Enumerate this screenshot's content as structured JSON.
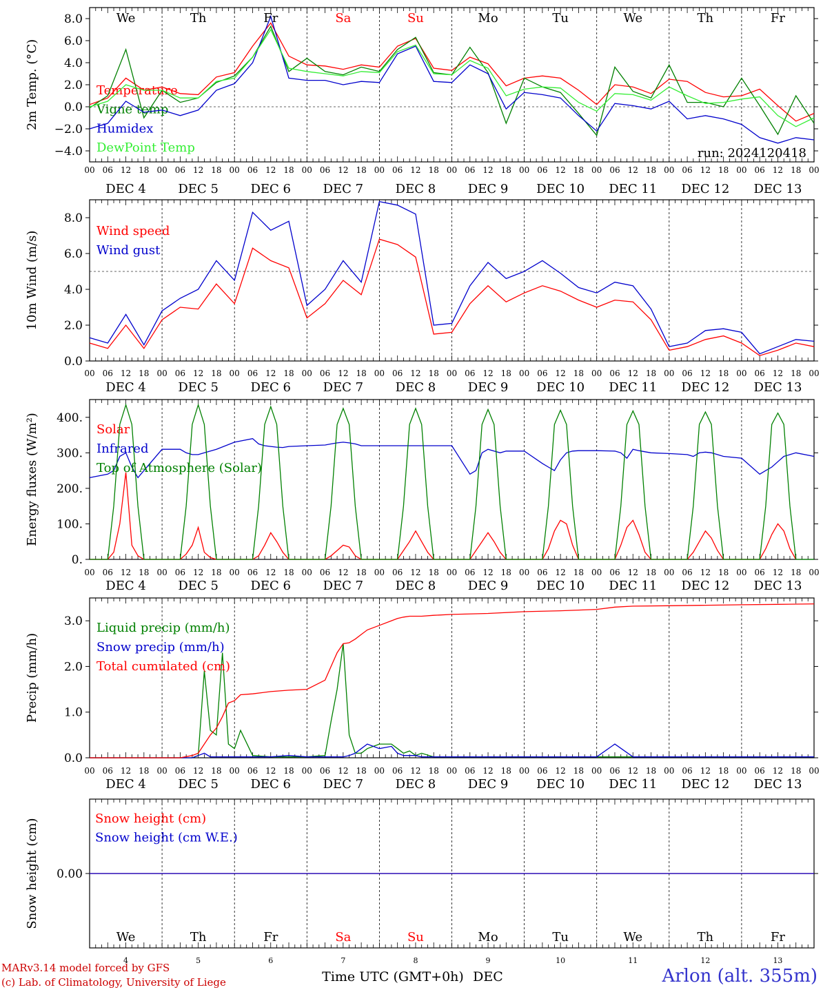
{
  "days": [
    {
      "wd": "We",
      "date": "DEC  4",
      "num": "4",
      "weekend": false
    },
    {
      "wd": "Th",
      "date": "DEC  5",
      "num": "5",
      "weekend": false
    },
    {
      "wd": "Fr",
      "date": "DEC  6",
      "num": "6",
      "weekend": false
    },
    {
      "wd": "Sa",
      "date": "DEC  7",
      "num": "7",
      "weekend": true
    },
    {
      "wd": "Su",
      "date": "DEC  8",
      "num": "8",
      "weekend": true
    },
    {
      "wd": "Mo",
      "date": "DEC  9",
      "num": "9",
      "weekend": false
    },
    {
      "wd": "Tu",
      "date": "DEC 10",
      "num": "10",
      "weekend": false
    },
    {
      "wd": "We",
      "date": "DEC 11",
      "num": "11",
      "weekend": false
    },
    {
      "wd": "Th",
      "date": "DEC 12",
      "num": "12",
      "weekend": false
    },
    {
      "wd": "Fr",
      "date": "DEC 13",
      "num": "13",
      "weekend": false
    }
  ],
  "hour_labels": [
    "00",
    "06",
    "12",
    "18"
  ],
  "end_hour_label": "00",
  "colors": {
    "red": "#ff0000",
    "green": "#008000",
    "blue": "#0000cc",
    "lightgreen": "#33ee33",
    "weekend": "#ff0000"
  },
  "chart_data": [
    {
      "type": "line",
      "ylabel": "2m Temp. (°C)",
      "ylim": [
        -5,
        9
      ],
      "yticks": [
        "8.0",
        "6.0",
        "4.0",
        "2.0",
        "0.0",
        "−2.0",
        "−4.0"
      ],
      "ytick_values": [
        8,
        6,
        4,
        2,
        0,
        -2,
        -4
      ],
      "ref_line": 0,
      "annotation": "run: 2024120418",
      "x_hours": [
        0,
        6,
        12,
        18,
        24,
        30,
        36,
        42,
        48,
        54,
        60,
        66,
        72,
        78,
        84,
        90,
        96,
        102,
        108,
        114,
        120,
        126,
        132,
        138,
        144,
        150,
        156,
        162,
        168,
        174,
        180,
        186,
        192,
        198,
        204,
        210,
        216,
        222,
        228,
        234,
        240
      ],
      "series": [
        {
          "name": "Temperature",
          "color": "red",
          "values": [
            0.2,
            0.8,
            2.6,
            1.5,
            1.8,
            1.2,
            1.1,
            2.7,
            3.1,
            5.5,
            7.6,
            4.6,
            3.8,
            3.7,
            3.4,
            3.8,
            3.6,
            5.5,
            6.2,
            3.5,
            3.3,
            4.5,
            3.9,
            1.9,
            2.6,
            2.8,
            2.6,
            1.5,
            0.2,
            2.0,
            1.8,
            1.2,
            2.5,
            2.3,
            1.3,
            0.9,
            1.0,
            1.6,
            0.1,
            -1.3,
            -0.6
          ]
        },
        {
          "name": "Vigne temp",
          "color": "green",
          "values": [
            -0.1,
            1.0,
            5.2,
            -1.0,
            1.5,
            0.4,
            0.8,
            2.2,
            2.8,
            4.5,
            7.3,
            3.2,
            4.4,
            3.2,
            2.9,
            3.6,
            3.2,
            5.2,
            6.3,
            3.1,
            2.9,
            5.4,
            3.1,
            -1.5,
            2.6,
            1.8,
            1.3,
            -0.6,
            -2.6,
            3.6,
            1.4,
            0.8,
            3.8,
            0.4,
            0.4,
            0.0,
            2.6,
            0.1,
            -2.5,
            1.0,
            -1.5
          ]
        },
        {
          "name": "Humidex",
          "color": "blue",
          "values": [
            -2.0,
            -1.5,
            0.5,
            -0.5,
            -0.3,
            -0.8,
            -0.3,
            1.5,
            2.1,
            4.0,
            8.2,
            2.6,
            2.4,
            2.4,
            2.0,
            2.3,
            2.2,
            4.8,
            5.5,
            2.3,
            2.2,
            3.8,
            3.0,
            -0.2,
            1.3,
            1.1,
            0.8,
            -0.8,
            -2.2,
            0.3,
            0.1,
            -0.2,
            0.5,
            -1.1,
            -0.8,
            -1.1,
            -1.6,
            -2.8,
            -3.3,
            -2.8,
            -3.0
          ]
        },
        {
          "name": "DewPoint Temp",
          "color": "lightgreen",
          "values": [
            0.0,
            0.5,
            2.0,
            1.5,
            1.5,
            0.8,
            0.8,
            2.3,
            2.6,
            4.5,
            7.0,
            3.5,
            3.2,
            3.0,
            2.8,
            3.2,
            3.1,
            5.0,
            5.6,
            3.0,
            2.9,
            4.2,
            3.5,
            1.0,
            1.6,
            1.8,
            1.7,
            0.4,
            -0.4,
            1.2,
            1.1,
            0.6,
            1.8,
            1.0,
            0.3,
            0.4,
            0.7,
            0.9,
            -0.8,
            -1.8,
            -1.0
          ]
        }
      ]
    },
    {
      "type": "line",
      "ylabel": "10m Wind (m/s)",
      "ylim": [
        0,
        9
      ],
      "yticks": [
        "8.0",
        "6.0",
        "4.0",
        "2.0",
        "0.0"
      ],
      "ytick_values": [
        8,
        6,
        4,
        2,
        0
      ],
      "ref_line": 5,
      "x_hours": [
        0,
        6,
        12,
        18,
        24,
        30,
        36,
        42,
        48,
        54,
        60,
        66,
        72,
        78,
        84,
        90,
        96,
        102,
        108,
        114,
        120,
        126,
        132,
        138,
        144,
        150,
        156,
        162,
        168,
        174,
        180,
        186,
        192,
        198,
        204,
        210,
        216,
        222,
        228,
        234,
        240
      ],
      "series": [
        {
          "name": "Wind speed",
          "color": "red",
          "values": [
            1.0,
            0.7,
            2.0,
            0.7,
            2.3,
            3.0,
            2.9,
            4.3,
            3.2,
            6.3,
            5.6,
            5.2,
            2.4,
            3.2,
            4.5,
            3.7,
            6.8,
            6.5,
            5.8,
            1.5,
            1.6,
            3.2,
            4.2,
            3.3,
            3.8,
            4.2,
            3.9,
            3.4,
            3.0,
            3.4,
            3.3,
            2.3,
            0.6,
            0.8,
            1.2,
            1.4,
            1.0,
            0.3,
            0.6,
            1.0,
            0.8
          ]
        },
        {
          "name": "Wind gust",
          "color": "blue",
          "values": [
            1.3,
            1.0,
            2.6,
            0.9,
            2.8,
            3.5,
            4.0,
            5.6,
            4.5,
            8.3,
            7.3,
            7.8,
            3.1,
            4.0,
            5.6,
            4.4,
            8.9,
            8.7,
            8.2,
            2.0,
            2.1,
            4.2,
            5.5,
            4.6,
            5.0,
            5.6,
            4.9,
            4.1,
            3.8,
            4.4,
            4.2,
            2.9,
            0.8,
            1.0,
            1.7,
            1.8,
            1.6,
            0.4,
            0.8,
            1.2,
            1.1
          ]
        }
      ]
    },
    {
      "type": "line",
      "ylabel": "Energy fluxes (W/m²)",
      "ylim": [
        0,
        450
      ],
      "yticks": [
        "400.",
        "300.",
        "200.",
        "100.",
        "0."
      ],
      "ytick_values": [
        400,
        300,
        200,
        100,
        0
      ],
      "x_hours": [
        0,
        6,
        8,
        10,
        12,
        14,
        16,
        18,
        24,
        30,
        32,
        34,
        36,
        38,
        40,
        42,
        48,
        54,
        56,
        58,
        60,
        62,
        64,
        66,
        72,
        78,
        80,
        82,
        84,
        86,
        88,
        90,
        96,
        102,
        104,
        106,
        108,
        110,
        112,
        114,
        120,
        126,
        128,
        130,
        132,
        134,
        136,
        138,
        144,
        150,
        152,
        154,
        156,
        158,
        160,
        162,
        168,
        174,
        176,
        178,
        180,
        182,
        184,
        186,
        192,
        198,
        200,
        202,
        204,
        206,
        208,
        210,
        216,
        222,
        224,
        226,
        228,
        230,
        232,
        234,
        240
      ],
      "series": [
        {
          "name": "Solar",
          "color": "red",
          "values": [
            0,
            0,
            20,
            100,
            245,
            40,
            10,
            0,
            0,
            0,
            15,
            40,
            90,
            20,
            5,
            0,
            0,
            0,
            10,
            40,
            75,
            50,
            20,
            0,
            0,
            0,
            10,
            25,
            40,
            35,
            10,
            0,
            0,
            0,
            25,
            50,
            80,
            50,
            20,
            0,
            0,
            0,
            25,
            50,
            75,
            50,
            20,
            0,
            0,
            0,
            30,
            80,
            110,
            100,
            40,
            0,
            0,
            0,
            40,
            90,
            110,
            70,
            20,
            0,
            0,
            0,
            20,
            50,
            80,
            60,
            25,
            0,
            0,
            0,
            30,
            70,
            100,
            80,
            30,
            0
          ]
        },
        {
          "name": "Infrared",
          "color": "blue",
          "values": [
            230,
            240,
            250,
            290,
            300,
            260,
            230,
            250,
            310,
            310,
            300,
            295,
            295,
            300,
            305,
            310,
            330,
            340,
            325,
            320,
            318,
            316,
            315,
            318,
            320,
            322,
            325,
            328,
            330,
            328,
            325,
            320,
            320,
            320,
            320,
            320,
            320,
            320,
            320,
            320,
            320,
            240,
            250,
            300,
            310,
            305,
            300,
            305,
            305,
            270,
            260,
            250,
            280,
            300,
            305,
            306,
            306,
            305,
            300,
            285,
            310,
            306,
            303,
            300,
            298,
            295,
            290,
            300,
            302,
            300,
            295,
            290,
            285,
            240,
            250,
            260,
            275,
            290,
            295,
            300,
            290
          ]
        },
        {
          "name": "Top of Atmosphere (Solar)",
          "color": "green",
          "values": [
            0,
            0,
            150,
            380,
            435,
            380,
            150,
            0,
            0,
            0,
            150,
            380,
            435,
            380,
            150,
            0,
            0,
            0,
            150,
            380,
            430,
            380,
            150,
            0,
            0,
            0,
            150,
            380,
            425,
            380,
            150,
            0,
            0,
            0,
            150,
            380,
            425,
            380,
            150,
            0,
            0,
            0,
            150,
            380,
            422,
            380,
            150,
            0,
            0,
            0,
            150,
            380,
            420,
            380,
            150,
            0,
            0,
            0,
            150,
            380,
            418,
            380,
            150,
            0,
            0,
            0,
            150,
            380,
            415,
            380,
            150,
            0,
            0,
            0,
            150,
            380,
            412,
            380,
            150,
            0,
            0
          ]
        }
      ]
    },
    {
      "type": "line",
      "ylabel": "Precip (mm/h)",
      "ylim": [
        0,
        3.5
      ],
      "yticks": [
        "3.0",
        "2.0",
        "1.0",
        "0.0"
      ],
      "ytick_values": [
        3,
        2,
        1,
        0
      ],
      "x_hours": [
        0,
        6,
        12,
        18,
        24,
        30,
        34,
        36,
        38,
        40,
        42,
        44,
        46,
        48,
        50,
        54,
        60,
        66,
        72,
        78,
        80,
        82,
        84,
        86,
        88,
        90,
        92,
        96,
        100,
        102,
        104,
        106,
        108,
        110,
        114,
        120,
        132,
        144,
        156,
        168,
        174,
        180,
        192,
        204,
        216,
        228,
        240
      ],
      "series": [
        {
          "name": "Liquid precip (mm/h)",
          "color": "green",
          "values": [
            0,
            0,
            0,
            0,
            0,
            0,
            0,
            0.05,
            1.9,
            0.6,
            0.5,
            2.3,
            0.3,
            0.2,
            0.6,
            0.05,
            0.02,
            0.02,
            0.02,
            0.05,
            0.8,
            1.5,
            2.5,
            0.5,
            0.1,
            0.1,
            0.2,
            0.3,
            0.3,
            0.2,
            0.1,
            0.15,
            0.05,
            0.1,
            0.02,
            0.02,
            0.02,
            0.02,
            0.02,
            0.02,
            0.02,
            0.02,
            0.02,
            0.02,
            0.02,
            0.02,
            0.02
          ]
        },
        {
          "name": "Snow precip (mm/h)",
          "color": "blue",
          "values": [
            0,
            0,
            0,
            0,
            0,
            0,
            0,
            0.05,
            0.1,
            0.02,
            0.02,
            0.02,
            0.02,
            0.02,
            0.02,
            0.02,
            0.02,
            0.05,
            0.02,
            0.02,
            0.02,
            0.02,
            0.02,
            0.05,
            0.1,
            0.2,
            0.3,
            0.2,
            0.25,
            0.1,
            0.05,
            0.05,
            0.05,
            0.02,
            0.02,
            0.02,
            0.02,
            0.02,
            0.02,
            0.02,
            0.3,
            0.02,
            0.02,
            0.02,
            0.02,
            0.02,
            0.02
          ]
        },
        {
          "name": "Total cumulated (cm)",
          "color": "red",
          "values": [
            0,
            0,
            0,
            0,
            0,
            0,
            0.05,
            0.1,
            0.3,
            0.5,
            0.65,
            0.9,
            1.2,
            1.25,
            1.38,
            1.4,
            1.45,
            1.48,
            1.5,
            1.7,
            2.0,
            2.3,
            2.5,
            2.52,
            2.6,
            2.7,
            2.8,
            2.9,
            3.0,
            3.05,
            3.08,
            3.1,
            3.1,
            3.1,
            3.12,
            3.14,
            3.16,
            3.2,
            3.22,
            3.25,
            3.3,
            3.32,
            3.33,
            3.34,
            3.35,
            3.36,
            3.37
          ]
        }
      ]
    },
    {
      "type": "line",
      "ylabel": "Snow height (cm)",
      "ylim": [
        -1,
        1
      ],
      "yticks": [
        "0.00"
      ],
      "ytick_values": [
        0
      ],
      "x_hours": [
        0,
        240
      ],
      "series": [
        {
          "name": "Snow height (cm)",
          "color": "red",
          "values": [
            0,
            0
          ]
        },
        {
          "name": "Snow height (cm W.E.)",
          "color": "blue",
          "values": [
            0,
            0
          ]
        }
      ]
    }
  ],
  "footer": {
    "xlabel": "Time UTC (GMT+0h)",
    "month": "DEC",
    "credit1": "MARv3.14 model forced by GFS",
    "credit2": "(c) Lab. of Climatology, University of Liege",
    "station": "Arlon (alt. 355m)"
  }
}
